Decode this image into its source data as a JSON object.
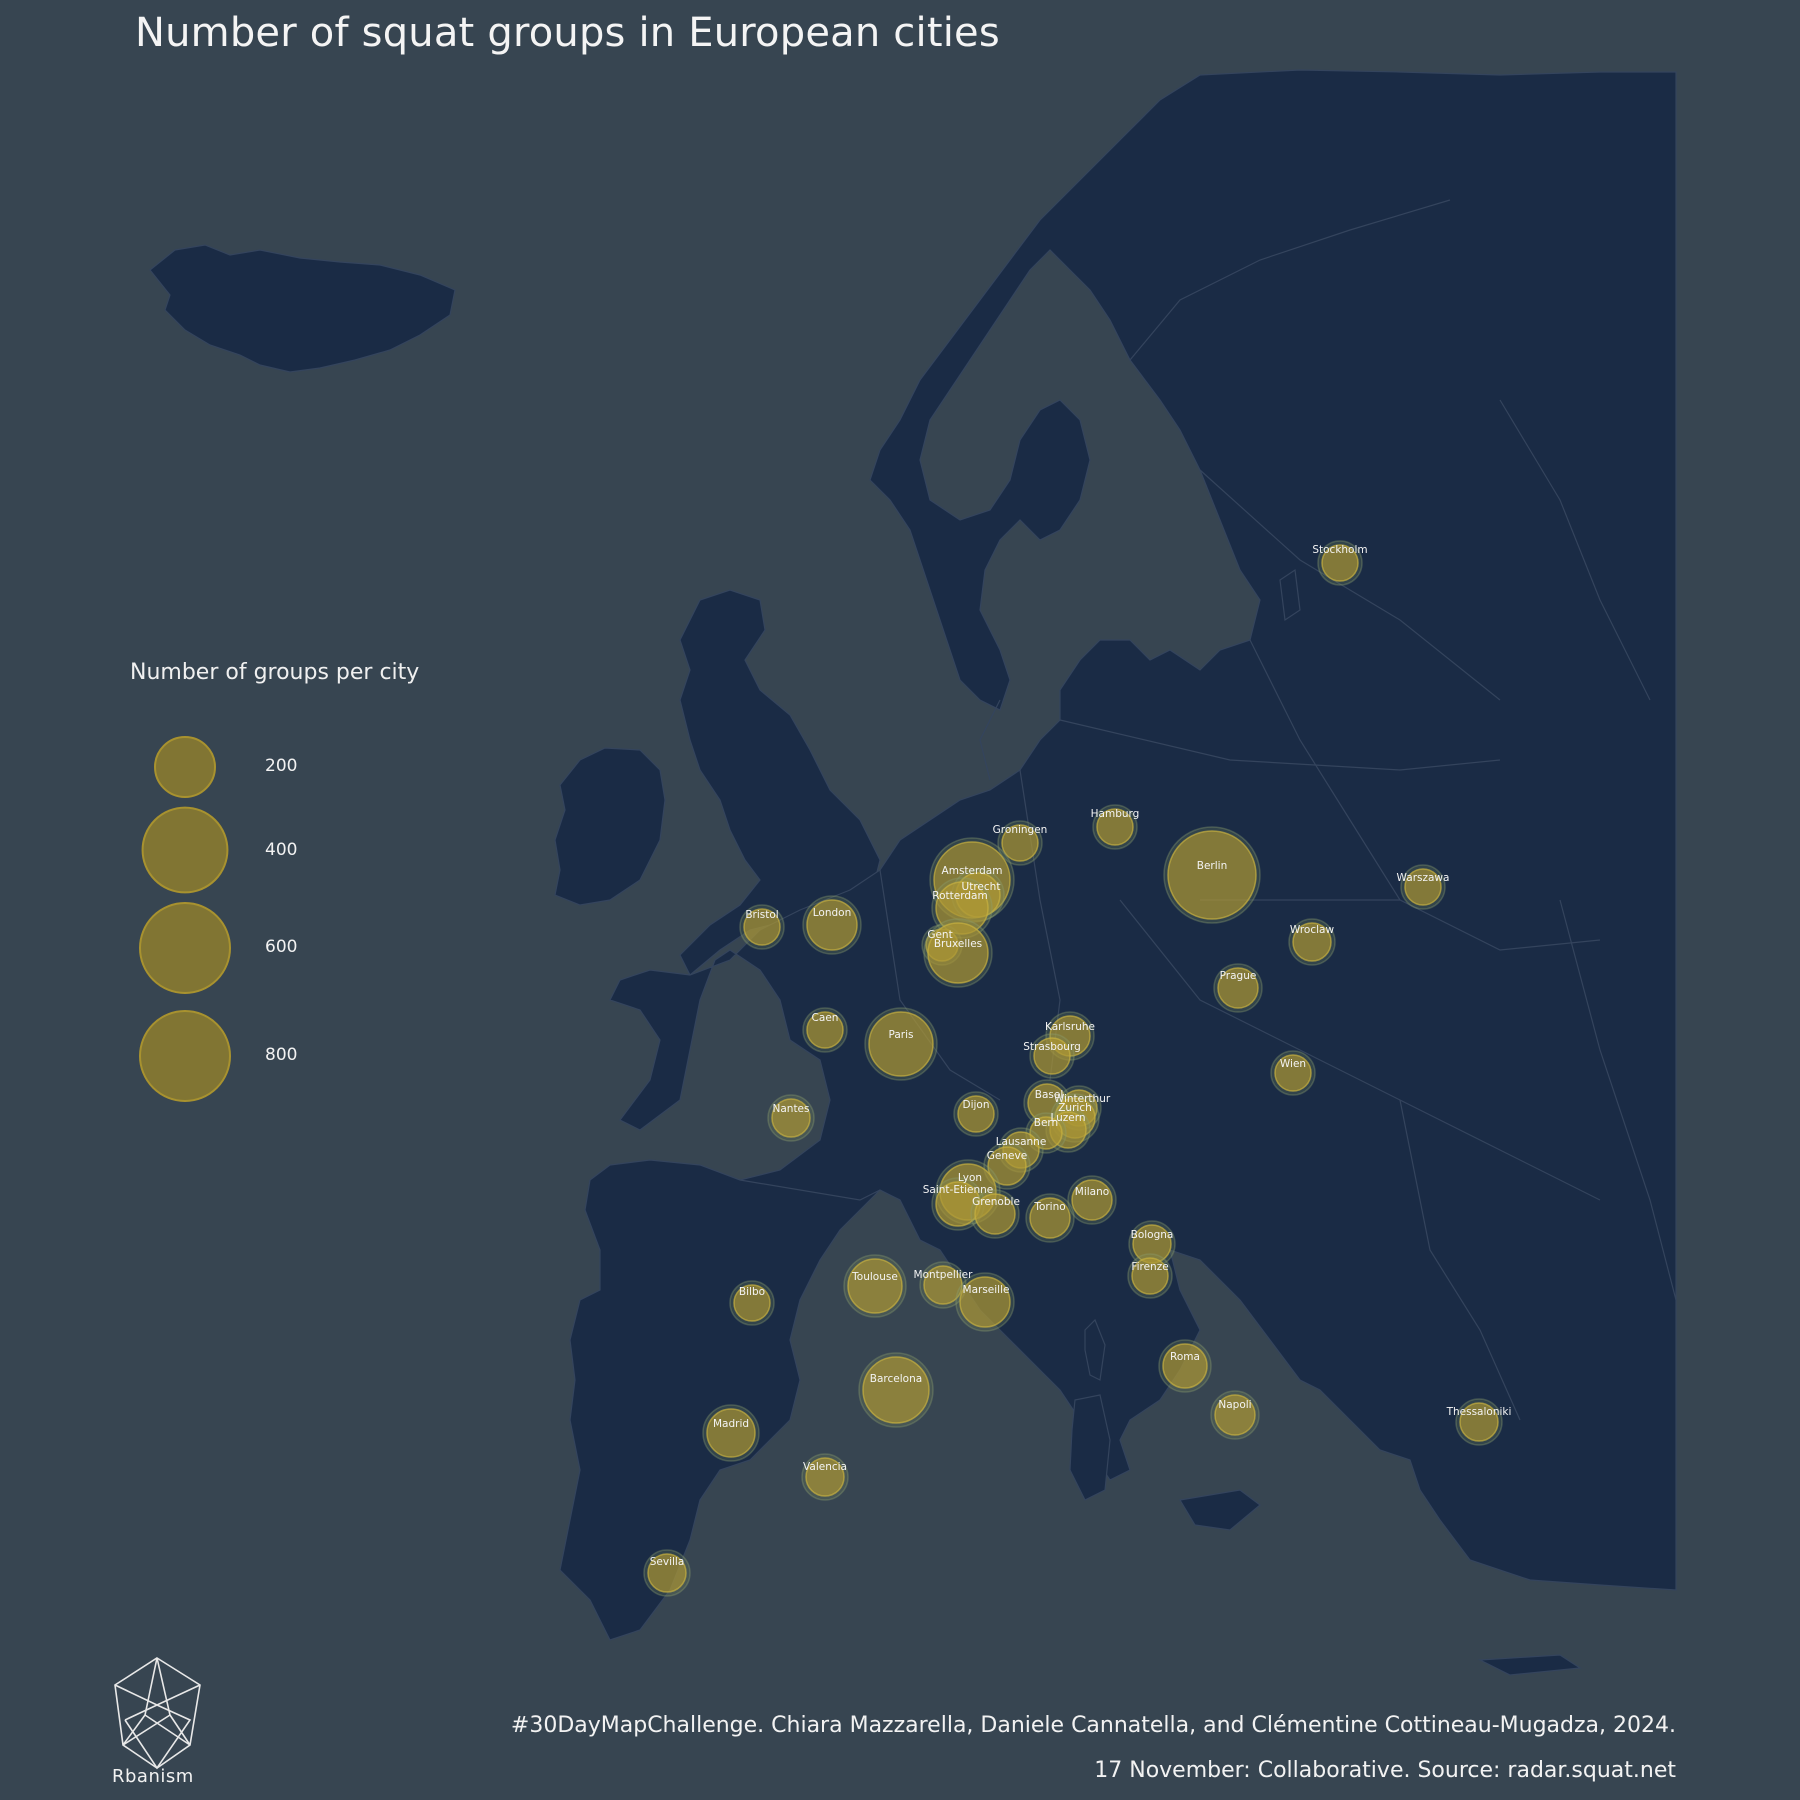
{
  "title": "Number of squat groups in European cities",
  "legend": {
    "title": "Number of groups per city",
    "entries": [
      {
        "value": 200,
        "label": "200"
      },
      {
        "value": 400,
        "label": "400"
      },
      {
        "value": 600,
        "label": "600"
      },
      {
        "value": 800,
        "label": "800"
      }
    ]
  },
  "colors": {
    "background": "#374551",
    "land": "#1a2b45",
    "borders": "#34445d",
    "bubble_fill": "#8a7a30",
    "bubble_stroke": "#b8a23a",
    "highlight": "#d8bd2a"
  },
  "cities": [
    {
      "name": "Stockholm"
    },
    {
      "name": "Hamburg"
    },
    {
      "name": "Groningen"
    },
    {
      "name": "Berlin"
    },
    {
      "name": "Warszawa"
    },
    {
      "name": "Amsterdam"
    },
    {
      "name": "Utrecht"
    },
    {
      "name": "Rotterdam"
    },
    {
      "name": "Bristol"
    },
    {
      "name": "London"
    },
    {
      "name": "Gent"
    },
    {
      "name": "Bruxelles"
    },
    {
      "name": "Wroclaw"
    },
    {
      "name": "Prague"
    },
    {
      "name": "Caen"
    },
    {
      "name": "Paris"
    },
    {
      "name": "Karlsruhe"
    },
    {
      "name": "Strasbourg"
    },
    {
      "name": "Wien"
    },
    {
      "name": "Basel"
    },
    {
      "name": "Winterthur"
    },
    {
      "name": "Zurich"
    },
    {
      "name": "Dijon"
    },
    {
      "name": "Luzern"
    },
    {
      "name": "Bern"
    },
    {
      "name": "Nantes"
    },
    {
      "name": "Lausanne"
    },
    {
      "name": "Geneve"
    },
    {
      "name": "Lyon"
    },
    {
      "name": "Saint-Etienne"
    },
    {
      "name": "Grenoble"
    },
    {
      "name": "Milano"
    },
    {
      "name": "Torino"
    },
    {
      "name": "Bologna"
    },
    {
      "name": "Firenze"
    },
    {
      "name": "Toulouse"
    },
    {
      "name": "Montpellier"
    },
    {
      "name": "Marseille"
    },
    {
      "name": "Bilbo"
    },
    {
      "name": "Roma"
    },
    {
      "name": "Barcelona"
    },
    {
      "name": "Napoli"
    },
    {
      "name": "Thessaloniki"
    },
    {
      "name": "Madrid"
    },
    {
      "name": "Valencia"
    },
    {
      "name": "Sevilla"
    }
  ],
  "caption": {
    "line1": "#30DayMapChallenge. Chiara Mazzarella, Daniele Cannatella, and Clémentine Cottineau-Mugadza, 2024.",
    "line2": "17 November: Collaborative. Source: radar.squat.net"
  },
  "logo": {
    "text": "Rbanism"
  }
}
